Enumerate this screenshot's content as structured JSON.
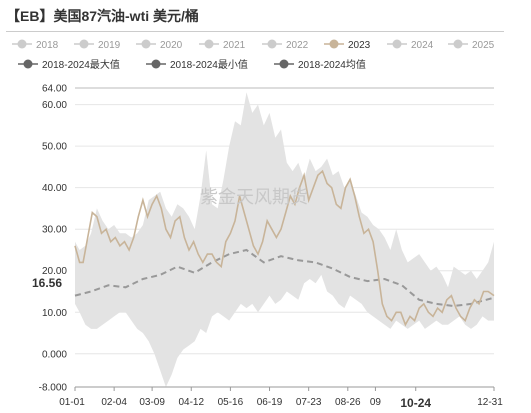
{
  "title": "【EB】美国87汽油-wti 美元/桶",
  "watermark": "紫金天风期货",
  "cursor": {
    "value_label": "16.56",
    "date_label": "10-24"
  },
  "colors": {
    "inactive": "#cccccc",
    "series_2023": "#c8b499",
    "band_fill": "#e3e3e3",
    "avg_line": "#999999",
    "legend_dark": "#666666"
  },
  "chart_data": {
    "type": "line",
    "title": "【EB】美国87汽油-wti 美元/桶",
    "x_tick_labels": [
      "01-01",
      "02-04",
      "03-09",
      "04-12",
      "05-16",
      "06-19",
      "07-23",
      "08-26",
      "09",
      "10-24",
      "12-31"
    ],
    "y_tick_labels": [
      "64.00",
      "60.00",
      "50.00",
      "40.00",
      "30.00",
      "20.00",
      "10.00",
      "0.000",
      "-8.000"
    ],
    "ylim": [
      -8,
      64
    ],
    "x_domain_days": [
      1,
      365
    ],
    "legend": {
      "years": [
        "2018",
        "2019",
        "2020",
        "2021",
        "2022",
        "2023",
        "2024",
        "2025"
      ],
      "active_year": "2023",
      "stats": [
        "2018-2024最大值",
        "2018-2024最小值",
        "2018-2024均值"
      ],
      "placement": "top"
    },
    "series": [
      {
        "name": "2023",
        "x": [
          1,
          5,
          8,
          12,
          16,
          20,
          24,
          28,
          32,
          36,
          40,
          44,
          48,
          52,
          56,
          60,
          64,
          68,
          72,
          76,
          80,
          84,
          88,
          92,
          96,
          100,
          104,
          108,
          112,
          116,
          120,
          124,
          128,
          132,
          136,
          140,
          144,
          148,
          152,
          156,
          160,
          164,
          168,
          172,
          176,
          180,
          184,
          188,
          192,
          196,
          200,
          204,
          208,
          212,
          216,
          220,
          224,
          228,
          232,
          236,
          240,
          244,
          248,
          252,
          256,
          260,
          264,
          268,
          272,
          276,
          280,
          284,
          288,
          292,
          296,
          300,
          304,
          308,
          312,
          316,
          320,
          324,
          328,
          332,
          336,
          340,
          344,
          348,
          352,
          356,
          360,
          365
        ],
        "values": [
          26,
          22,
          22,
          28,
          34,
          33,
          29,
          30,
          27,
          28,
          26,
          27,
          25,
          28,
          33,
          37,
          33,
          36,
          38,
          35,
          30,
          28,
          32,
          33,
          28,
          25,
          27,
          24,
          22,
          24,
          24,
          22,
          21,
          27,
          29,
          32,
          38,
          34,
          30,
          26,
          24,
          27,
          32,
          30,
          28,
          30,
          34,
          38,
          36,
          40,
          43,
          37,
          40,
          43,
          44,
          41,
          40,
          36,
          35,
          40,
          42,
          38,
          33,
          29,
          30,
          27,
          20,
          12,
          9,
          8,
          10,
          10,
          7,
          9,
          8,
          11,
          12,
          10,
          9,
          11,
          10,
          13,
          14,
          11,
          9,
          8,
          11,
          13,
          12,
          15,
          15,
          14
        ]
      },
      {
        "name": "2018-2024最大值",
        "x": [
          1,
          5,
          10,
          15,
          20,
          25,
          30,
          35,
          40,
          45,
          50,
          55,
          60,
          65,
          70,
          75,
          80,
          85,
          90,
          95,
          100,
          105,
          110,
          115,
          120,
          125,
          130,
          135,
          140,
          145,
          150,
          155,
          160,
          165,
          170,
          175,
          180,
          185,
          190,
          195,
          200,
          205,
          210,
          215,
          220,
          225,
          230,
          235,
          240,
          245,
          250,
          255,
          260,
          265,
          270,
          275,
          280,
          285,
          290,
          295,
          300,
          305,
          310,
          315,
          320,
          325,
          330,
          335,
          340,
          345,
          350,
          355,
          360,
          365
        ],
        "values": [
          27,
          25,
          26,
          29,
          35,
          32,
          30,
          31,
          29,
          29,
          28,
          29,
          31,
          37,
          38,
          39,
          35,
          33,
          36,
          35,
          33,
          30,
          38,
          49,
          36,
          35,
          42,
          50,
          56,
          55,
          63,
          58,
          60,
          55,
          58,
          52,
          54,
          46,
          44,
          46,
          42,
          47,
          44,
          45,
          47,
          43,
          44,
          40,
          42,
          38,
          34,
          33,
          31,
          30,
          28,
          25,
          30,
          25,
          22,
          23,
          24,
          22,
          20,
          21,
          19,
          16,
          21,
          20,
          19,
          20,
          18,
          20,
          22,
          27
        ]
      },
      {
        "name": "2018-2024最小值",
        "x": [
          1,
          5,
          10,
          15,
          20,
          25,
          30,
          35,
          40,
          45,
          50,
          55,
          60,
          65,
          70,
          75,
          80,
          85,
          90,
          95,
          100,
          105,
          110,
          115,
          120,
          125,
          130,
          135,
          140,
          145,
          150,
          155,
          160,
          165,
          170,
          175,
          180,
          185,
          190,
          195,
          200,
          205,
          210,
          215,
          220,
          225,
          230,
          235,
          240,
          245,
          250,
          255,
          260,
          265,
          270,
          275,
          280,
          285,
          290,
          295,
          300,
          305,
          310,
          315,
          320,
          325,
          330,
          335,
          340,
          345,
          350,
          355,
          360,
          365
        ],
        "values": [
          12,
          10,
          7,
          6,
          6,
          7,
          8,
          9,
          10,
          10,
          8,
          6,
          5,
          3,
          0,
          -4,
          -8,
          -5,
          -1,
          1,
          2,
          3,
          6,
          5,
          9,
          10,
          9,
          8,
          10,
          12,
          11,
          12,
          10,
          12,
          14,
          12,
          13,
          15,
          14,
          13,
          17,
          18,
          17,
          19,
          15,
          14,
          12,
          11,
          14,
          13,
          12,
          10,
          9,
          8,
          7,
          6,
          8,
          7,
          6,
          7,
          8,
          6,
          7,
          8,
          7,
          7,
          8,
          9,
          7,
          6,
          7,
          9,
          8,
          8
        ]
      },
      {
        "name": "2018-2024均值",
        "x": [
          1,
          15,
          30,
          45,
          60,
          75,
          90,
          105,
          120,
          135,
          150,
          165,
          180,
          195,
          210,
          225,
          240,
          255,
          270,
          285,
          300,
          315,
          330,
          345,
          365
        ],
        "values": [
          14,
          15,
          16.5,
          16,
          18,
          19,
          21,
          19.5,
          22,
          24,
          25,
          22,
          23.5,
          22.5,
          22,
          20.5,
          18.5,
          17.5,
          18,
          16.5,
          13,
          12,
          11.5,
          12,
          13.5
        ]
      }
    ]
  }
}
